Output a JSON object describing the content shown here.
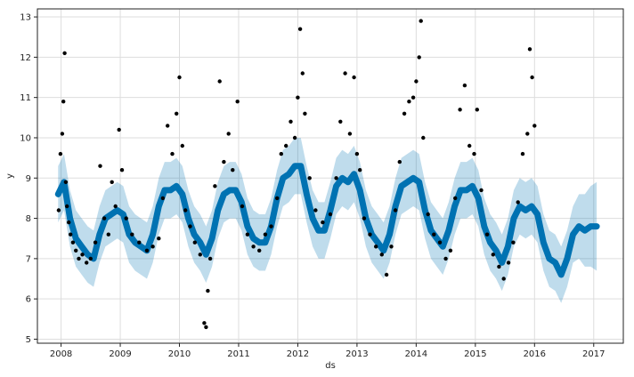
{
  "chart_data": {
    "type": "line",
    "title": "",
    "xlabel": "ds",
    "ylabel": "y",
    "xlim": [
      2007.6,
      2017.5
    ],
    "ylim": [
      4.9,
      13.2
    ],
    "x_ticks": [
      2008,
      2009,
      2010,
      2011,
      2012,
      2013,
      2014,
      2015,
      2016,
      2017
    ],
    "y_ticks": [
      5,
      6,
      7,
      8,
      9,
      10,
      11,
      12,
      13
    ],
    "grid": true,
    "legend": "none",
    "colors": {
      "forecast_line": "#0072B2",
      "uncertainty_band": "#0072B2",
      "observations": "#000000"
    },
    "series": [
      {
        "name": "forecast",
        "x": [
          2007.95,
          2008.05,
          2008.15,
          2008.25,
          2008.35,
          2008.45,
          2008.55,
          2008.65,
          2008.75,
          2008.85,
          2008.95,
          2009.05,
          2009.15,
          2009.25,
          2009.35,
          2009.45,
          2009.55,
          2009.65,
          2009.75,
          2009.85,
          2009.95,
          2010.05,
          2010.15,
          2010.25,
          2010.35,
          2010.45,
          2010.55,
          2010.65,
          2010.75,
          2010.85,
          2010.95,
          2011.05,
          2011.15,
          2011.25,
          2011.35,
          2011.45,
          2011.55,
          2011.65,
          2011.75,
          2011.85,
          2011.95,
          2012.05,
          2012.15,
          2012.25,
          2012.35,
          2012.45,
          2012.55,
          2012.65,
          2012.75,
          2012.85,
          2012.95,
          2013.05,
          2013.15,
          2013.25,
          2013.35,
          2013.45,
          2013.55,
          2013.65,
          2013.75,
          2013.85,
          2013.95,
          2014.05,
          2014.15,
          2014.25,
          2014.35,
          2014.45,
          2014.55,
          2014.65,
          2014.75,
          2014.85,
          2014.95,
          2015.05,
          2015.15,
          2015.25,
          2015.35,
          2015.45,
          2015.55,
          2015.65,
          2015.75,
          2015.85,
          2015.95,
          2016.05,
          2016.15,
          2016.25,
          2016.35,
          2016.45,
          2016.55,
          2016.65,
          2016.75,
          2016.85,
          2016.95,
          2017.05
        ],
        "values": [
          8.6,
          8.9,
          8.0,
          7.5,
          7.3,
          7.1,
          7.0,
          7.6,
          8.0,
          8.1,
          8.2,
          8.1,
          7.6,
          7.4,
          7.3,
          7.2,
          7.6,
          8.3,
          8.7,
          8.7,
          8.8,
          8.6,
          8.0,
          7.6,
          7.4,
          7.1,
          7.5,
          8.2,
          8.6,
          8.7,
          8.7,
          8.4,
          7.8,
          7.5,
          7.4,
          7.4,
          7.8,
          8.5,
          9.0,
          9.1,
          9.3,
          9.3,
          8.6,
          8.0,
          7.7,
          7.7,
          8.2,
          8.8,
          9.0,
          8.9,
          9.1,
          8.7,
          8.0,
          7.6,
          7.4,
          7.2,
          7.6,
          8.3,
          8.8,
          8.9,
          9.0,
          8.9,
          8.2,
          7.7,
          7.5,
          7.3,
          7.7,
          8.3,
          8.7,
          8.7,
          8.8,
          8.5,
          7.8,
          7.4,
          7.2,
          6.9,
          7.3,
          8.0,
          8.3,
          8.2,
          8.3,
          8.1,
          7.4,
          7.0,
          6.9,
          6.6,
          7.0,
          7.6,
          7.8,
          7.7,
          7.8,
          7.8
        ]
      },
      {
        "name": "observations",
        "x": [
          2007.96,
          2007.99,
          2008.02,
          2008.04,
          2008.06,
          2008.08,
          2008.1,
          2008.13,
          2008.16,
          2008.2,
          2008.25,
          2008.3,
          2008.36,
          2008.43,
          2008.5,
          2008.58,
          2008.66,
          2008.73,
          2008.8,
          2008.86,
          2008.92,
          2008.98,
          2009.03,
          2009.1,
          2009.2,
          2009.32,
          2009.45,
          2009.55,
          2009.65,
          2009.72,
          2009.8,
          2009.88,
          2009.95,
          2010.0,
          2010.05,
          2010.1,
          2010.18,
          2010.26,
          2010.35,
          2010.42,
          2010.45,
          2010.48,
          2010.52,
          2010.6,
          2010.68,
          2010.75,
          2010.83,
          2010.9,
          2010.98,
          2011.06,
          2011.15,
          2011.25,
          2011.35,
          2011.45,
          2011.55,
          2011.65,
          2011.72,
          2011.8,
          2011.88,
          2011.95,
          2012.0,
          2012.04,
          2012.08,
          2012.12,
          2012.2,
          2012.3,
          2012.42,
          2012.55,
          2012.65,
          2012.72,
          2012.8,
          2012.88,
          2012.95,
          2013.0,
          2013.05,
          2013.12,
          2013.22,
          2013.32,
          2013.42,
          2013.5,
          2013.58,
          2013.65,
          2013.72,
          2013.8,
          2013.88,
          2013.95,
          2014.0,
          2014.05,
          2014.08,
          2014.12,
          2014.2,
          2014.3,
          2014.4,
          2014.5,
          2014.58,
          2014.66,
          2014.74,
          2014.82,
          2014.9,
          2014.98,
          2015.03,
          2015.1,
          2015.2,
          2015.3,
          2015.4,
          2015.48,
          2015.56,
          2015.64,
          2015.72,
          2015.8,
          2015.88,
          2015.92,
          2015.96,
          2016.0
        ],
        "values": [
          8.2,
          9.6,
          10.1,
          10.9,
          12.1,
          8.9,
          8.3,
          7.9,
          7.6,
          7.4,
          7.2,
          7.0,
          7.1,
          6.9,
          7.0,
          7.4,
          9.3,
          8.0,
          7.6,
          8.9,
          8.3,
          10.2,
          9.2,
          8.0,
          7.6,
          7.4,
          7.2,
          7.3,
          7.5,
          8.5,
          10.3,
          9.6,
          10.6,
          11.5,
          9.8,
          8.2,
          7.8,
          7.4,
          7.1,
          5.4,
          5.3,
          6.2,
          7.0,
          8.8,
          11.4,
          9.4,
          10.1,
          9.2,
          10.9,
          8.3,
          7.6,
          7.3,
          7.2,
          7.6,
          7.8,
          8.5,
          9.6,
          9.8,
          10.4,
          10.0,
          11.0,
          12.7,
          11.6,
          10.6,
          9.0,
          8.2,
          7.9,
          8.1,
          9.0,
          10.4,
          11.6,
          10.1,
          11.5,
          9.6,
          9.2,
          8.0,
          7.6,
          7.3,
          7.1,
          6.6,
          7.3,
          8.2,
          9.4,
          10.6,
          10.9,
          11.0,
          11.4,
          12.0,
          12.9,
          10.0,
          8.1,
          7.6,
          7.4,
          7.0,
          7.2,
          8.5,
          10.7,
          11.3,
          9.8,
          9.6,
          10.7,
          8.7,
          7.6,
          7.1,
          6.8,
          6.5,
          6.9,
          7.4,
          8.4,
          9.6,
          10.1,
          12.2,
          11.5,
          10.3
        ]
      }
    ],
    "uncertainty_band": {
      "x": [
        2007.95,
        2008.05,
        2008.15,
        2008.25,
        2008.35,
        2008.45,
        2008.55,
        2008.65,
        2008.75,
        2008.85,
        2008.95,
        2009.05,
        2009.15,
        2009.25,
        2009.35,
        2009.45,
        2009.55,
        2009.65,
        2009.75,
        2009.85,
        2009.95,
        2010.05,
        2010.15,
        2010.25,
        2010.35,
        2010.45,
        2010.55,
        2010.65,
        2010.75,
        2010.85,
        2010.95,
        2011.05,
        2011.15,
        2011.25,
        2011.35,
        2011.45,
        2011.55,
        2011.65,
        2011.75,
        2011.85,
        2011.95,
        2012.05,
        2012.15,
        2012.25,
        2012.35,
        2012.45,
        2012.55,
        2012.65,
        2012.75,
        2012.85,
        2012.95,
        2013.05,
        2013.15,
        2013.25,
        2013.35,
        2013.45,
        2013.55,
        2013.65,
        2013.75,
        2013.85,
        2013.95,
        2014.05,
        2014.15,
        2014.25,
        2014.35,
        2014.45,
        2014.55,
        2014.65,
        2014.75,
        2014.85,
        2014.95,
        2015.05,
        2015.15,
        2015.25,
        2015.35,
        2015.45,
        2015.55,
        2015.65,
        2015.75,
        2015.85,
        2015.95,
        2016.05,
        2016.15,
        2016.25,
        2016.35,
        2016.45,
        2016.55,
        2016.65,
        2016.75,
        2016.85,
        2016.95,
        2017.05
      ],
      "upper": [
        9.3,
        9.6,
        8.7,
        8.2,
        8.0,
        7.8,
        7.7,
        8.3,
        8.7,
        8.8,
        8.9,
        8.8,
        8.3,
        8.1,
        8.0,
        7.9,
        8.3,
        9.0,
        9.4,
        9.4,
        9.5,
        9.3,
        8.7,
        8.3,
        8.1,
        7.8,
        8.2,
        8.9,
        9.3,
        9.4,
        9.4,
        9.1,
        8.5,
        8.2,
        8.1,
        8.1,
        8.5,
        9.2,
        9.7,
        9.8,
        10.0,
        10.0,
        9.3,
        8.7,
        8.4,
        8.4,
        8.9,
        9.5,
        9.7,
        9.6,
        9.8,
        9.4,
        8.7,
        8.3,
        8.1,
        7.9,
        8.3,
        9.0,
        9.5,
        9.6,
        9.7,
        9.6,
        8.9,
        8.4,
        8.2,
        8.0,
        8.4,
        9.0,
        9.4,
        9.4,
        9.5,
        9.2,
        8.5,
        8.1,
        7.9,
        7.6,
        8.0,
        8.7,
        9.0,
        8.9,
        9.0,
        8.8,
        8.1,
        7.7,
        7.6,
        7.3,
        7.7,
        8.3,
        8.6,
        8.6,
        8.8,
        8.9
      ],
      "lower": [
        7.9,
        8.2,
        7.3,
        6.8,
        6.6,
        6.4,
        6.3,
        6.9,
        7.3,
        7.4,
        7.5,
        7.4,
        6.9,
        6.7,
        6.6,
        6.5,
        6.9,
        7.6,
        8.0,
        8.0,
        8.1,
        7.9,
        7.3,
        6.9,
        6.7,
        6.4,
        6.8,
        7.5,
        7.9,
        8.0,
        8.0,
        7.7,
        7.1,
        6.8,
        6.7,
        6.7,
        7.1,
        7.8,
        8.3,
        8.4,
        8.6,
        8.6,
        7.9,
        7.3,
        7.0,
        7.0,
        7.5,
        8.1,
        8.3,
        8.2,
        8.4,
        8.0,
        7.3,
        6.9,
        6.7,
        6.5,
        6.9,
        7.6,
        8.1,
        8.2,
        8.3,
        8.2,
        7.5,
        7.0,
        6.8,
        6.6,
        7.0,
        7.6,
        8.0,
        8.0,
        8.1,
        7.8,
        7.1,
        6.7,
        6.5,
        6.2,
        6.6,
        7.3,
        7.6,
        7.5,
        7.6,
        7.4,
        6.7,
        6.3,
        6.2,
        5.9,
        6.3,
        6.9,
        7.0,
        6.8,
        6.8,
        6.7
      ]
    }
  }
}
